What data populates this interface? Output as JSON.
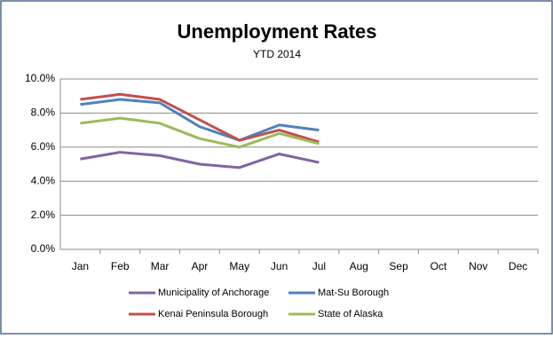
{
  "chart_data": {
    "type": "line",
    "title": "Unemployment Rates",
    "subtitle": "YTD 2014",
    "categories": [
      "Jan",
      "Feb",
      "Mar",
      "Apr",
      "May",
      "Jun",
      "Jul",
      "Aug",
      "Sep",
      "Oct",
      "Nov",
      "Dec"
    ],
    "series": [
      {
        "name": "Municipality of Anchorage",
        "color": "#8064a2",
        "values": [
          5.3,
          5.7,
          5.5,
          5.0,
          4.8,
          5.6,
          5.1,
          null,
          null,
          null,
          null,
          null
        ]
      },
      {
        "name": "Mat-Su Borough",
        "color": "#4f81bd",
        "values": [
          8.5,
          8.8,
          8.6,
          7.2,
          6.4,
          7.3,
          7.0,
          null,
          null,
          null,
          null,
          null
        ]
      },
      {
        "name": "Kenai Peninsula Borough",
        "color": "#c0504d",
        "values": [
          8.8,
          9.1,
          8.8,
          7.6,
          6.4,
          7.0,
          6.3,
          null,
          null,
          null,
          null,
          null
        ]
      },
      {
        "name": "State of Alaska",
        "color": "#9bbb59",
        "values": [
          7.4,
          7.7,
          7.4,
          6.5,
          6.0,
          6.8,
          6.2,
          null,
          null,
          null,
          null,
          null
        ]
      }
    ],
    "ylim": [
      0,
      10
    ],
    "yticks": [
      {
        "value": 0,
        "label": "0.0%"
      },
      {
        "value": 2,
        "label": "2.0%"
      },
      {
        "value": 4,
        "label": "4.0%"
      },
      {
        "value": 6,
        "label": "6.0%"
      },
      {
        "value": 8,
        "label": "8.0%"
      },
      {
        "value": 10,
        "label": "10.0%"
      }
    ],
    "grid": true
  }
}
